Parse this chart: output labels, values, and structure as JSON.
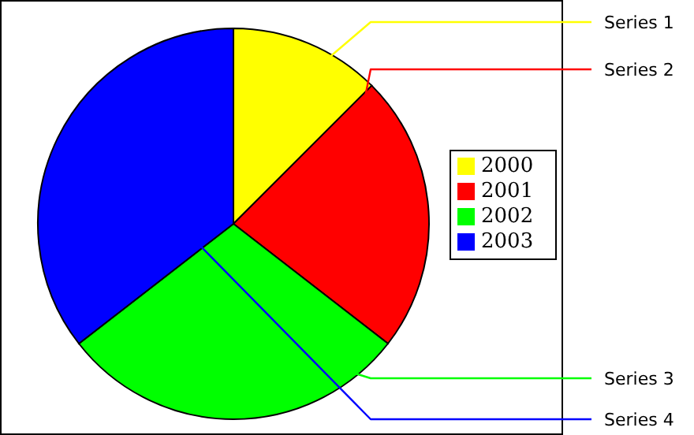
{
  "chart_data": {
    "type": "pie",
    "categories": [
      "2000",
      "2001",
      "2002",
      "2003"
    ],
    "values": [
      12.5,
      23,
      29,
      35.5
    ],
    "colors": [
      "#ffff00",
      "#ff0000",
      "#00ff00",
      "#0000ff"
    ],
    "value_labels": [
      "Series 1",
      "Series 2",
      "Series 3",
      "Series 4"
    ],
    "legend": "right"
  }
}
